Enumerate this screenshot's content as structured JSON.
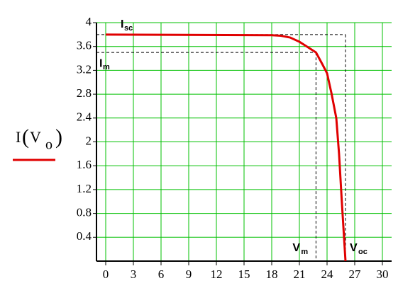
{
  "chart_data": {
    "type": "line",
    "y_label": {
      "main": "I",
      "open": "(",
      "var": "V",
      "sub": "o",
      "close": ")"
    },
    "x": [
      0,
      18,
      19,
      20,
      21,
      22,
      22.8,
      23.5,
      24,
      24.5,
      25,
      25.3,
      25.6,
      25.8,
      26
    ],
    "series": [
      {
        "color": "#e00000",
        "values": [
          3.8,
          3.79,
          3.78,
          3.75,
          3.68,
          3.58,
          3.5,
          3.3,
          3.15,
          2.8,
          2.4,
          1.8,
          1.0,
          0.5,
          0
        ]
      }
    ],
    "xlim": [
      -1,
      31
    ],
    "xticks": [
      0,
      3,
      6,
      9,
      12,
      15,
      18,
      21,
      24,
      27,
      30
    ],
    "ylim": [
      0,
      4
    ],
    "yticks": [
      0.4,
      0.8,
      1.2,
      1.6,
      2,
      2.4,
      2.8,
      3.2,
      3.6,
      4
    ],
    "grid": true,
    "grid_color": "#00c000",
    "reference_lines": [
      {
        "axis": "y",
        "value": 3.8,
        "label": "I",
        "sub": "sc",
        "color": "#e00000"
      },
      {
        "axis": "y",
        "value": 3.5,
        "label": "I",
        "sub": "m",
        "color": "#000000"
      },
      {
        "axis": "x",
        "value": 22.8,
        "label": "V",
        "sub": "m",
        "color": "#000000"
      },
      {
        "axis": "x",
        "value": 26,
        "label": "V",
        "sub": "oc",
        "color": "#e00000"
      }
    ]
  }
}
